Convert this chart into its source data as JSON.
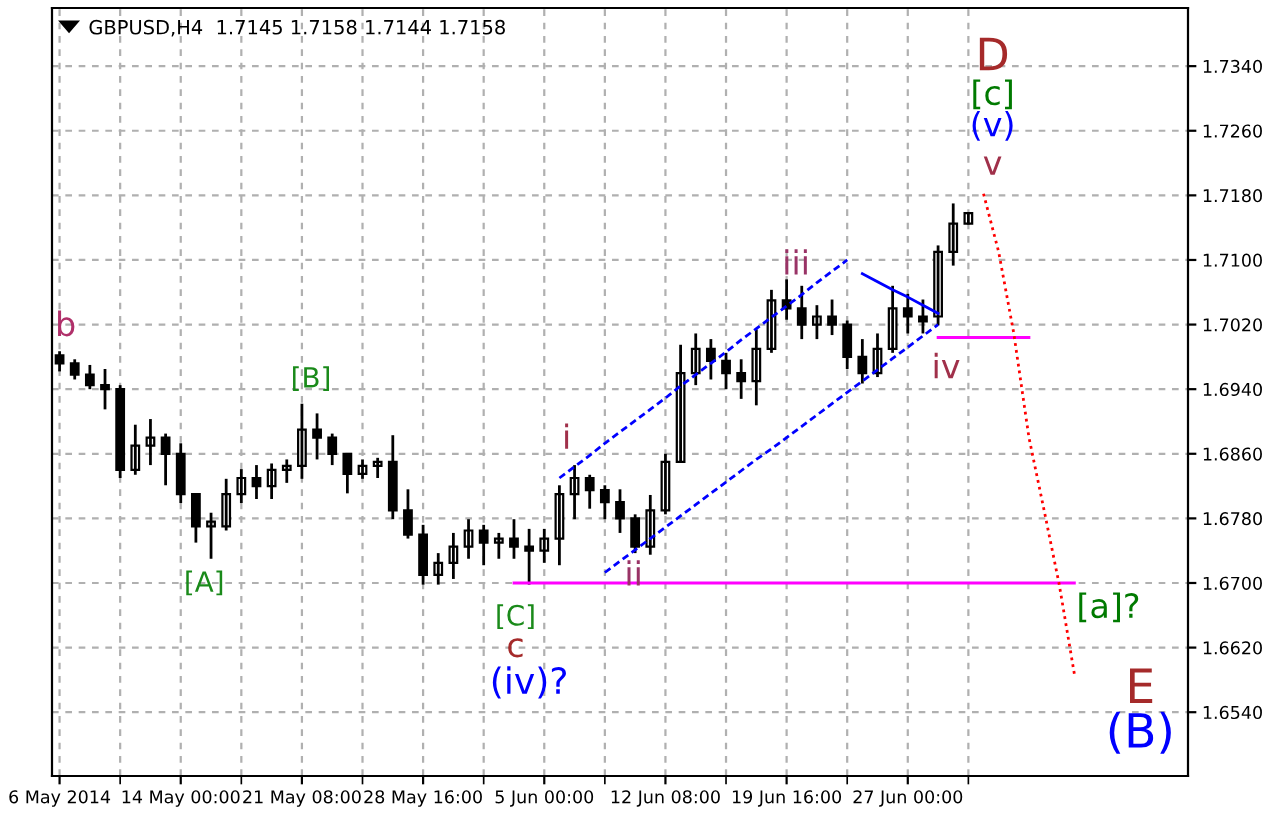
{
  "chart_data": {
    "type": "candlestick",
    "title": "GBPUSD,H4  1.7145 1.7158 1.7144 1.7158",
    "categories": [
      "6 May 2014",
      null,
      null,
      null,
      null,
      null,
      null,
      null,
      "14 May 00:00",
      null,
      null,
      null,
      null,
      null,
      null,
      null,
      "21 May 08:00",
      null,
      null,
      null,
      null,
      null,
      null,
      null,
      "28 May 16:00",
      null,
      null,
      null,
      null,
      null,
      null,
      null,
      "5 Jun 00:00",
      null,
      null,
      null,
      null,
      null,
      null,
      null,
      "12 Jun 08:00",
      null,
      null,
      null,
      null,
      null,
      null,
      null,
      "19 Jun 16:00",
      null,
      null,
      null,
      null,
      null,
      null,
      null,
      "27 Jun 00:00",
      null,
      null,
      null,
      null,
      null,
      null,
      null,
      null,
      null,
      null,
      null,
      null,
      null,
      null,
      null,
      null,
      null,
      null
    ],
    "series": [
      {
        "color": "#000000",
        "ohlc": [
          [
            1.6982,
            1.6987,
            1.6962,
            1.6972
          ],
          [
            1.6972,
            1.6977,
            1.6952,
            1.6958
          ],
          [
            1.6958,
            1.697,
            1.694,
            1.6945
          ],
          [
            1.6945,
            1.6965,
            1.6915,
            1.694
          ],
          [
            1.694,
            1.6945,
            1.683,
            1.684
          ],
          [
            1.684,
            1.6896,
            1.6834,
            1.687
          ],
          [
            1.687,
            1.6903,
            1.6846,
            1.688
          ],
          [
            1.688,
            1.6885,
            1.6821,
            1.686
          ],
          [
            1.686,
            1.6873,
            1.6799,
            1.681
          ],
          [
            1.681,
            1.6811,
            1.675,
            1.677
          ],
          [
            1.677,
            1.6787,
            1.673,
            1.6776
          ],
          [
            1.677,
            1.6829,
            1.6765,
            1.681
          ],
          [
            1.681,
            1.6841,
            1.6799,
            1.683
          ],
          [
            1.683,
            1.6846,
            1.6804,
            1.682
          ],
          [
            1.682,
            1.6848,
            1.6804,
            1.684
          ],
          [
            1.684,
            1.6853,
            1.6824,
            1.6845
          ],
          [
            1.6845,
            1.6922,
            1.6829,
            1.689
          ],
          [
            1.689,
            1.691,
            1.6853,
            1.688
          ],
          [
            1.688,
            1.6885,
            1.6846,
            1.686
          ],
          [
            1.686,
            1.6861,
            1.6811,
            1.6835
          ],
          [
            1.6835,
            1.6853,
            1.6829,
            1.6845
          ],
          [
            1.6845,
            1.6855,
            1.683,
            1.685
          ],
          [
            1.685,
            1.6883,
            1.6779,
            1.679
          ],
          [
            1.679,
            1.6816,
            1.6755,
            1.676
          ],
          [
            1.676,
            1.6772,
            1.6698,
            1.671
          ],
          [
            1.671,
            1.6737,
            1.6698,
            1.6725
          ],
          [
            1.6725,
            1.6762,
            1.6705,
            1.6745
          ],
          [
            1.6745,
            1.6779,
            1.673,
            1.6765
          ],
          [
            1.6765,
            1.6772,
            1.6722,
            1.675
          ],
          [
            1.675,
            1.6762,
            1.673,
            1.6755
          ],
          [
            1.6755,
            1.6779,
            1.673,
            1.6745
          ],
          [
            1.6745,
            1.6767,
            1.6698,
            1.674
          ],
          [
            1.674,
            1.6767,
            1.6725,
            1.6755
          ],
          [
            1.6755,
            1.6821,
            1.6722,
            1.681
          ],
          [
            1.681,
            1.6846,
            1.6779,
            1.683
          ],
          [
            1.683,
            1.6834,
            1.6792,
            1.6815
          ],
          [
            1.6815,
            1.6821,
            1.6779,
            1.68
          ],
          [
            1.68,
            1.6816,
            1.6762,
            1.678
          ],
          [
            1.678,
            1.6785,
            1.6737,
            1.6745
          ],
          [
            1.6745,
            1.6809,
            1.6735,
            1.679
          ],
          [
            1.679,
            1.686,
            1.6785,
            1.685
          ],
          [
            1.685,
            1.6995,
            1.685,
            1.696
          ],
          [
            1.696,
            1.7009,
            1.6945,
            1.699
          ],
          [
            1.699,
            1.7002,
            1.6952,
            1.6975
          ],
          [
            1.6975,
            1.6985,
            1.694,
            1.696
          ],
          [
            1.696,
            1.6977,
            1.6928,
            1.695
          ],
          [
            1.695,
            1.7014,
            1.692,
            1.699
          ],
          [
            1.699,
            1.7063,
            1.6985,
            1.705
          ],
          [
            1.705,
            1.7076,
            1.7026,
            1.704
          ],
          [
            1.704,
            1.7068,
            1.7002,
            1.702
          ],
          [
            1.702,
            1.7044,
            1.7002,
            1.703
          ],
          [
            1.703,
            1.7051,
            1.7007,
            1.702
          ],
          [
            1.702,
            1.7025,
            1.6965,
            1.698
          ],
          [
            1.698,
            1.7002,
            1.6947,
            1.696
          ],
          [
            1.696,
            1.7009,
            1.6955,
            1.699
          ],
          [
            1.699,
            1.7068,
            1.6985,
            1.704
          ],
          [
            1.704,
            1.7058,
            1.7009,
            1.703
          ],
          [
            1.703,
            1.7051,
            1.7009,
            1.7024
          ],
          [
            1.703,
            1.7118,
            1.7019,
            1.711
          ],
          [
            1.711,
            1.717,
            1.7093,
            1.7145
          ],
          [
            1.7145,
            1.7158,
            1.7144,
            1.7158
          ],
          null,
          null,
          null,
          null,
          null,
          null,
          null,
          null,
          null,
          null,
          null,
          null,
          null,
          null
        ]
      },
      {
        "type": "line",
        "color": "#0000ff",
        "line_style": "dashed",
        "values": [
          null,
          null,
          null,
          null,
          null,
          null,
          null,
          null,
          null,
          null,
          null,
          null,
          null,
          null,
          null,
          null,
          null,
          null,
          null,
          null,
          null,
          null,
          null,
          null,
          null,
          null,
          null,
          null,
          null,
          null,
          null,
          null,
          null,
          1.683,
          1.6844,
          1.6858,
          1.6873,
          1.6887,
          1.6901,
          1.6915,
          1.6929,
          1.6944,
          1.6958,
          1.6972,
          1.6986,
          1.7001,
          1.7015,
          1.7029,
          1.7043,
          1.7057,
          1.7072,
          1.7086,
          1.71,
          null,
          null,
          null,
          null,
          null,
          null,
          null,
          null,
          null,
          null,
          null,
          null,
          null,
          null,
          null,
          null,
          null,
          null,
          null,
          null,
          null,
          null
        ]
      },
      {
        "type": "line",
        "color": "#0000ff",
        "line_style": "dashed",
        "values": [
          null,
          null,
          null,
          null,
          null,
          null,
          null,
          null,
          null,
          null,
          null,
          null,
          null,
          null,
          null,
          null,
          null,
          null,
          null,
          null,
          null,
          null,
          null,
          null,
          null,
          null,
          null,
          null,
          null,
          null,
          null,
          null,
          null,
          null,
          null,
          null,
          1.6713,
          1.6727,
          1.6741,
          1.6755,
          1.6769,
          1.6783,
          1.6797,
          1.6811,
          1.6825,
          1.6839,
          1.6853,
          1.6866,
          1.688,
          1.6894,
          1.6908,
          1.6922,
          1.6936,
          1.695,
          1.6964,
          1.6978,
          1.6992,
          1.7006,
          1.702,
          null,
          null,
          null,
          null,
          null,
          null,
          null,
          null,
          null,
          null,
          null,
          null,
          null,
          null,
          null,
          null
        ]
      },
      {
        "type": "line",
        "color": "#0000ff",
        "line_style": "solid",
        "values": [
          null,
          null,
          null,
          null,
          null,
          null,
          null,
          null,
          null,
          null,
          null,
          null,
          null,
          null,
          null,
          null,
          null,
          null,
          null,
          null,
          null,
          null,
          null,
          null,
          null,
          null,
          null,
          null,
          null,
          null,
          null,
          null,
          null,
          null,
          null,
          null,
          null,
          null,
          null,
          null,
          null,
          null,
          null,
          null,
          null,
          null,
          null,
          null,
          null,
          null,
          null,
          null,
          null,
          1.7083,
          1.7073,
          1.7063,
          1.7054,
          1.7044,
          1.7034,
          null,
          null,
          null,
          null,
          null,
          null,
          null,
          null,
          null,
          null,
          null,
          null,
          null,
          null,
          null,
          null
        ]
      },
      {
        "type": "line",
        "color": "#ff00ff",
        "line_style": "solid",
        "values": [
          null,
          null,
          null,
          null,
          null,
          null,
          null,
          null,
          null,
          null,
          null,
          null,
          null,
          null,
          null,
          null,
          null,
          null,
          null,
          null,
          null,
          null,
          null,
          null,
          null,
          null,
          null,
          null,
          null,
          null,
          1.67,
          1.67,
          1.67,
          1.67,
          1.67,
          1.67,
          1.67,
          1.67,
          1.67,
          1.67,
          1.67,
          1.67,
          1.67,
          1.67,
          1.67,
          1.67,
          1.67,
          1.67,
          1.67,
          1.67,
          1.67,
          1.67,
          1.67,
          1.67,
          1.67,
          1.67,
          1.67,
          1.67,
          1.67,
          1.67,
          1.67,
          1.67,
          1.67,
          1.67,
          1.67,
          1.67,
          1.67,
          1.67,
          null,
          null,
          null,
          null,
          null,
          null,
          null
        ]
      },
      {
        "type": "line",
        "color": "#ff00ff",
        "line_style": "solid",
        "values": [
          null,
          null,
          null,
          null,
          null,
          null,
          null,
          null,
          null,
          null,
          null,
          null,
          null,
          null,
          null,
          null,
          null,
          null,
          null,
          null,
          null,
          null,
          null,
          null,
          null,
          null,
          null,
          null,
          null,
          null,
          null,
          null,
          null,
          null,
          null,
          null,
          null,
          null,
          null,
          null,
          null,
          null,
          null,
          null,
          null,
          null,
          null,
          null,
          null,
          null,
          null,
          null,
          null,
          null,
          null,
          null,
          null,
          null,
          1.7004,
          1.7004,
          1.7004,
          1.7004,
          1.7004,
          1.7004,
          1.7004,
          null,
          null,
          null,
          null,
          null,
          null,
          null,
          null,
          null,
          null
        ]
      },
      {
        "type": "line",
        "color": "#ff0000",
        "line_style": "dotted",
        "values": [
          null,
          null,
          null,
          null,
          null,
          null,
          null,
          null,
          null,
          null,
          null,
          null,
          null,
          null,
          null,
          null,
          null,
          null,
          null,
          null,
          null,
          null,
          null,
          null,
          null,
          null,
          null,
          null,
          null,
          null,
          null,
          null,
          null,
          null,
          null,
          null,
          null,
          null,
          null,
          null,
          null,
          null,
          null,
          null,
          null,
          null,
          null,
          null,
          null,
          null,
          null,
          null,
          null,
          null,
          null,
          null,
          null,
          null,
          null,
          null,
          null,
          1.7182,
          1.711,
          1.7009,
          1.688,
          1.679,
          1.6698,
          1.6587,
          null,
          null,
          null,
          null,
          null,
          null,
          null
        ]
      }
    ],
    "ylim": [
      1.6461,
      1.7412
    ],
    "yticks": [
      {
        "value": 1.654,
        "label": "1.6540"
      },
      {
        "value": 1.662,
        "label": "1.6620"
      },
      {
        "value": 1.67,
        "label": "1.6700"
      },
      {
        "value": 1.678,
        "label": "1.6780"
      },
      {
        "value": 1.686,
        "label": "1.6860"
      },
      {
        "value": 1.694,
        "label": "1.6940"
      },
      {
        "value": 1.702,
        "label": "1.7020"
      },
      {
        "value": 1.71,
        "label": "1.7100"
      },
      {
        "value": 1.718,
        "label": "1.7180"
      },
      {
        "value": 1.726,
        "label": "1.7260"
      },
      {
        "value": 1.734,
        "label": "1.7340"
      }
    ],
    "grid": true,
    "annotations": [
      "b",
      "[B]",
      "[A]",
      "i",
      "ii",
      "iii",
      "iv",
      "v",
      "(v)",
      "[c]",
      "D",
      "[C]",
      "c",
      "(iv)?",
      "[a]?",
      "E",
      "(B)"
    ]
  }
}
